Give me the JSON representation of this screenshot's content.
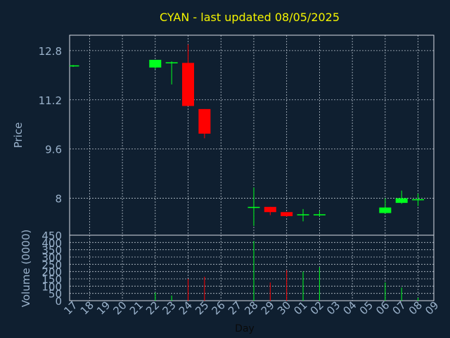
{
  "colors": {
    "background": "#0f1f30",
    "title": "#f4f400",
    "axis_text": "#9bb3cc",
    "up": "#00ff1e",
    "down": "#ff0000",
    "frame": "#d8dde6",
    "grid": "#b8c2cc"
  },
  "chart_data": [
    {
      "type": "candlestick",
      "title": "CYAN - last updated 08/05/2025",
      "ylabel": "Price",
      "ylim": [
        6.8,
        13.3
      ],
      "yticks": [
        8,
        9.6,
        11.2,
        12.8
      ],
      "ytick_labels": [
        "8",
        "9.6",
        "11.2",
        "12.8"
      ],
      "grid": true,
      "x_tick_labels": [
        "17",
        "18",
        "19",
        "20",
        "21",
        "22",
        "23",
        "24",
        "25",
        "26",
        "27",
        "28",
        "29",
        "30",
        "01",
        "02",
        "03",
        "04",
        "05",
        "06",
        "07",
        "08",
        "09"
      ],
      "candles": [
        {
          "day": "17",
          "open": 12.3,
          "high": 12.33,
          "low": 12.27,
          "close": 12.32
        },
        {
          "day": "22",
          "open": 12.25,
          "high": 12.5,
          "low": 12.2,
          "close": 12.5
        },
        {
          "day": "23",
          "open": 12.4,
          "high": 12.45,
          "low": 11.7,
          "close": 12.42
        },
        {
          "day": "24",
          "open": 12.4,
          "high": 13.0,
          "low": 11.0,
          "close": 11.0
        },
        {
          "day": "25",
          "open": 10.9,
          "high": 10.9,
          "low": 9.95,
          "close": 10.1
        },
        {
          "day": "28",
          "open": 7.7,
          "high": 8.35,
          "low": 7.1,
          "close": 7.72
        },
        {
          "day": "29",
          "open": 7.72,
          "high": 7.72,
          "low": 7.45,
          "close": 7.55
        },
        {
          "day": "30",
          "open": 7.55,
          "high": 7.55,
          "low": 7.4,
          "close": 7.42
        },
        {
          "day": "01",
          "open": 7.45,
          "high": 7.65,
          "low": 7.25,
          "close": 7.48
        },
        {
          "day": "02",
          "open": 7.45,
          "high": 7.6,
          "low": 7.4,
          "close": 7.48
        },
        {
          "day": "06",
          "open": 7.52,
          "high": 8.0,
          "low": 7.5,
          "close": 7.7
        },
        {
          "day": "07",
          "open": 7.85,
          "high": 8.25,
          "low": 7.82,
          "close": 8.0
        },
        {
          "day": "08",
          "open": 7.95,
          "high": 8.15,
          "low": 7.75,
          "close": 7.97
        }
      ]
    },
    {
      "type": "bar",
      "ylabel": "Volume (0000)",
      "xlabel": "Day",
      "ylim": [
        0,
        450
      ],
      "yticks": [
        0,
        50,
        100,
        150,
        200,
        250,
        300,
        350,
        400,
        450
      ],
      "ytick_labels": [
        "0",
        "50",
        "100",
        "150",
        "200",
        "250",
        "300",
        "350",
        "400",
        "450"
      ],
      "grid": true,
      "volumes": [
        {
          "day": "17",
          "value": 0,
          "direction": "up"
        },
        {
          "day": "22",
          "value": 55,
          "direction": "up"
        },
        {
          "day": "23",
          "value": 35,
          "direction": "up"
        },
        {
          "day": "24",
          "value": 150,
          "direction": "down"
        },
        {
          "day": "25",
          "value": 165,
          "direction": "down"
        },
        {
          "day": "28",
          "value": 410,
          "direction": "up"
        },
        {
          "day": "29",
          "value": 125,
          "direction": "down"
        },
        {
          "day": "30",
          "value": 210,
          "direction": "down"
        },
        {
          "day": "01",
          "value": 200,
          "direction": "up"
        },
        {
          "day": "02",
          "value": 230,
          "direction": "up"
        },
        {
          "day": "06",
          "value": 125,
          "direction": "up"
        },
        {
          "day": "07",
          "value": 90,
          "direction": "up"
        },
        {
          "day": "08",
          "value": 20,
          "direction": "up"
        }
      ]
    }
  ]
}
